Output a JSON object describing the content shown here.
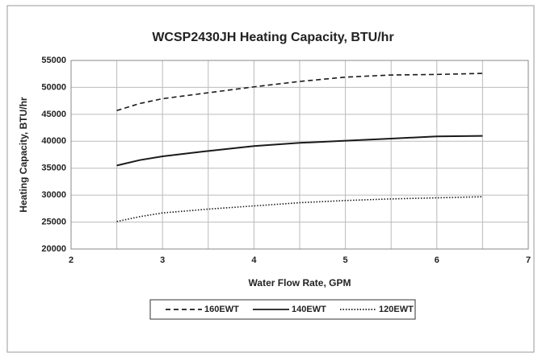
{
  "chart_data": {
    "type": "line",
    "title": "WCSP2430JH Heating Capacity, BTU/hr",
    "xlabel": "Water Flow Rate, GPM",
    "ylabel": "Heating Capacity, BTU/hr",
    "xlim": [
      2,
      7
    ],
    "xticks": [
      2,
      3,
      4,
      5,
      6,
      7
    ],
    "xminorticks": [
      2.5,
      3.5,
      4.5,
      5.5,
      6.5
    ],
    "ylim": [
      20000,
      55000
    ],
    "yticks": [
      20000,
      25000,
      30000,
      35000,
      40000,
      45000,
      50000,
      55000
    ],
    "grid": true,
    "legend": "bottom",
    "series": [
      {
        "name": "160EWT",
        "color": "#1a1a1a",
        "dash": "dashed",
        "x": [
          2.5,
          2.75,
          3,
          3.5,
          4,
          4.5,
          5,
          5.5,
          6,
          6.5
        ],
        "values": [
          45700,
          47000,
          47900,
          49000,
          50100,
          51100,
          51900,
          52300,
          52400,
          52600
        ]
      },
      {
        "name": "140EWT",
        "color": "#1a1a1a",
        "dash": "solid",
        "x": [
          2.5,
          2.75,
          3,
          3.5,
          4,
          4.5,
          5,
          5.5,
          6,
          6.5
        ],
        "values": [
          35500,
          36500,
          37200,
          38200,
          39100,
          39700,
          40100,
          40500,
          40900,
          41000
        ]
      },
      {
        "name": "120EWT",
        "color": "#1a1a1a",
        "dash": "dotted",
        "x": [
          2.5,
          2.75,
          3,
          3.5,
          4,
          4.5,
          5,
          5.5,
          6,
          6.5
        ],
        "values": [
          25100,
          26000,
          26700,
          27400,
          28000,
          28600,
          29000,
          29300,
          29500,
          29700
        ]
      }
    ]
  }
}
